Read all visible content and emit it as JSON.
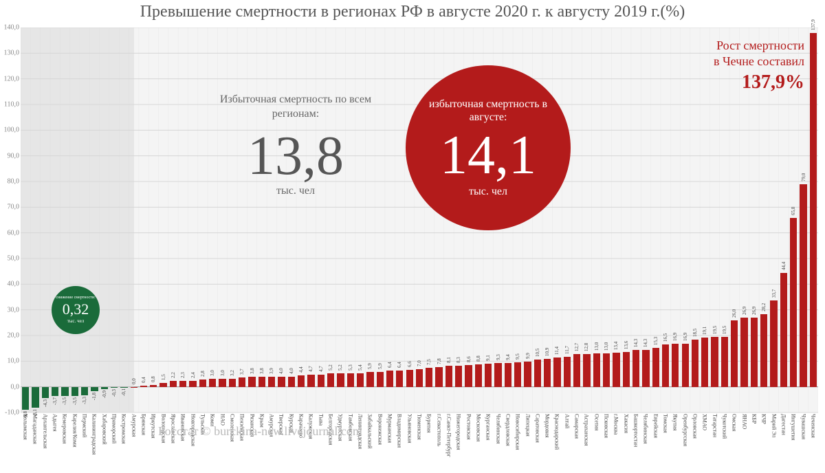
{
  "title": "Превышение смертности в регионах РФ в августе 2020 г. к августу 2019 г.(%)",
  "chart": {
    "type": "bar",
    "ylim": [
      -10,
      140
    ],
    "ytick_step": 10,
    "grid_color": "#e8e8e8",
    "grid_major_color": "#d0d0d0",
    "bg_color": "#f4f4f4",
    "neg_shade_color": "#d8d8d8",
    "bar_color_neg": "#1a6b3a",
    "bar_color_pos": "#b31b1b",
    "regions": [
      {
        "name": "Колымская",
        "value": -8.8
      },
      {
        "name": "Магаданская",
        "value": -8.1
      },
      {
        "name": "Архангельская",
        "value": -4.3
      },
      {
        "name": "Адыгея",
        "value": -3.7
      },
      {
        "name": "Кемеровская",
        "value": -3.5
      },
      {
        "name": "Карелия/Коми",
        "value": -3.5
      },
      {
        "name": "Пермский",
        "value": -3.3
      },
      {
        "name": "Калининградская",
        "value": -1.8
      },
      {
        "name": "Хабаровский",
        "value": -0.9
      },
      {
        "name": "Приморский",
        "value": -0.3
      },
      {
        "name": "Костромская",
        "value": -0.1
      },
      {
        "name": "Амурская",
        "value": 0.0
      },
      {
        "name": "Брянская",
        "value": 0.4
      },
      {
        "name": "Иркутская",
        "value": 0.8
      },
      {
        "name": "Вологодская",
        "value": 1.5
      },
      {
        "name": "Ярославская",
        "value": 2.2
      },
      {
        "name": "Ивановская",
        "value": 2.3
      },
      {
        "name": "Новгородская",
        "value": 2.4
      },
      {
        "name": "Тульская",
        "value": 2.8
      },
      {
        "name": "Коми",
        "value": 3.0
      },
      {
        "name": "НАО",
        "value": 3.0
      },
      {
        "name": "Смоленская",
        "value": 3.2
      },
      {
        "name": "Пензенская",
        "value": 3.7
      },
      {
        "name": "Рязанская",
        "value": 3.8
      },
      {
        "name": "Крым",
        "value": 3.8
      },
      {
        "name": "Амурская",
        "value": 3.9
      },
      {
        "name": "Тверская",
        "value": 4.0
      },
      {
        "name": "Курская",
        "value": 4.0
      },
      {
        "name": "Карачаево",
        "value": 4.4
      },
      {
        "name": "Калужская",
        "value": 4.7
      },
      {
        "name": "Тыва",
        "value": 4.7
      },
      {
        "name": "Белгородская",
        "value": 5.2
      },
      {
        "name": "Удмуртская",
        "value": 5.2
      },
      {
        "name": "Тамбовская",
        "value": 5.3
      },
      {
        "name": "Ленинградская",
        "value": 5.4
      },
      {
        "name": "Забайкальский",
        "value": 5.9
      },
      {
        "name": "Воронежская",
        "value": 5.9
      },
      {
        "name": "Мурманская",
        "value": 6.4
      },
      {
        "name": "Владимирская",
        "value": 6.4
      },
      {
        "name": "Ульяновская",
        "value": 6.6
      },
      {
        "name": "Тюменская",
        "value": 7.0
      },
      {
        "name": "Бурятия",
        "value": 7.5
      },
      {
        "name": "г.Севастополь",
        "value": 7.8
      },
      {
        "name": "г.Санкт-Петербург",
        "value": 8.1
      },
      {
        "name": "Нижегородская",
        "value": 8.3
      },
      {
        "name": "Ростовская",
        "value": 8.6
      },
      {
        "name": "Московская",
        "value": 8.8
      },
      {
        "name": "Курганская",
        "value": 9.1
      },
      {
        "name": "Челябинская",
        "value": 9.3
      },
      {
        "name": "Свердловская",
        "value": 9.4
      },
      {
        "name": "Новосибирская",
        "value": 9.5
      },
      {
        "name": "Липецкая",
        "value": 9.9
      },
      {
        "name": "Саратовская",
        "value": 10.5
      },
      {
        "name": "Мордовия",
        "value": 10.9
      },
      {
        "name": "Краснодарский",
        "value": 11.4
      },
      {
        "name": "Алтай",
        "value": 11.7
      },
      {
        "name": "Самарская",
        "value": 12.7
      },
      {
        "name": "Астраханская",
        "value": 12.8
      },
      {
        "name": "Осетия",
        "value": 13.0
      },
      {
        "name": "Псковская",
        "value": 13.0
      },
      {
        "name": "г.Москва",
        "value": 13.4
      },
      {
        "name": "Хакасия",
        "value": 13.6
      },
      {
        "name": "Башкортостан",
        "value": 14.3
      },
      {
        "name": "Челябинская",
        "value": 14.3
      },
      {
        "name": "Еврейская",
        "value": 15.3
      },
      {
        "name": "Томская",
        "value": 16.5
      },
      {
        "name": "Якутия",
        "value": 16.9
      },
      {
        "name": "Оренбургская",
        "value": 16.9
      },
      {
        "name": "Орловская",
        "value": 18.5
      },
      {
        "name": "ХМАО",
        "value": 19.1
      },
      {
        "name": "Татарстан",
        "value": 19.5
      },
      {
        "name": "Чукотский",
        "value": 19.5
      },
      {
        "name": "Омская",
        "value": 26.0
      },
      {
        "name": "ЯНАО",
        "value": 26.9
      },
      {
        "name": "КБР",
        "value": 26.9
      },
      {
        "name": "КЧР",
        "value": 28.2
      },
      {
        "name": "Марий Эл",
        "value": 33.7
      },
      {
        "name": "Дагестан",
        "value": 44.4
      },
      {
        "name": "Ингушетия",
        "value": 65.8
      },
      {
        "name": "Чувашская",
        "value": 79.0
      },
      {
        "name": "Чеченская",
        "value": 137.9
      }
    ]
  },
  "green_circle": {
    "label_top": "снижение смертности:",
    "value": "0,32",
    "label_bottom": "тыс. чел"
  },
  "gray_block": {
    "label_top": "Избыточная смертность по всем регионам:",
    "value": "13,8",
    "label_bottom": "тыс. чел"
  },
  "red_circle": {
    "label_top": "избыточная смертность в августе:",
    "value": "14,1",
    "label_bottom": "тыс. чел"
  },
  "callout": {
    "line1": "Рост смертности",
    "line2": "в Чечне составил",
    "value": "137,9%"
  },
  "source": "Росстат © burckina-new.livejournal.com"
}
